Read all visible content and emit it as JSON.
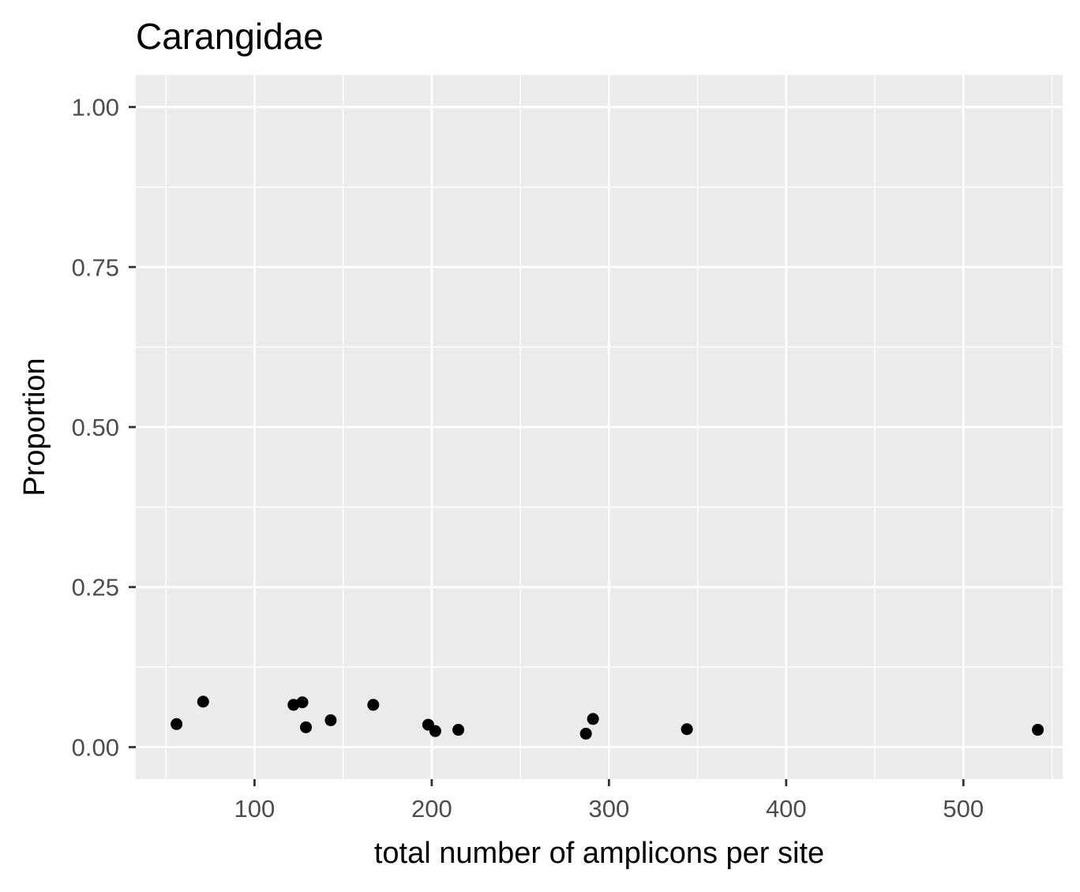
{
  "chart_data": {
    "type": "scatter",
    "title": "Carangidae",
    "xlabel": "total number of amplicons per site",
    "ylabel": "Proportion",
    "xlim": [
      33,
      556
    ],
    "ylim": [
      -0.05,
      1.05
    ],
    "x_ticks": [
      100,
      200,
      300,
      400,
      500
    ],
    "x_tick_labels": [
      "100",
      "200",
      "300",
      "400",
      "500"
    ],
    "x_minor_ticks": [
      50,
      150,
      250,
      350,
      450,
      550
    ],
    "y_ticks": [
      0,
      0.25,
      0.5,
      0.75,
      1.0
    ],
    "y_tick_labels": [
      "0.00",
      "0.25",
      "0.50",
      "0.75",
      "1.00"
    ],
    "y_minor_ticks": [
      0.125,
      0.375,
      0.625,
      0.875
    ],
    "grid": true,
    "legend": "none",
    "colors": {
      "panel_background": "#ebebeb",
      "grid": "#ffffff",
      "point": "#000000",
      "tick_label": "#4d4d4d",
      "text": "#000000"
    },
    "points": [
      {
        "x": 56,
        "y": 0.036
      },
      {
        "x": 71,
        "y": 0.071
      },
      {
        "x": 122,
        "y": 0.066
      },
      {
        "x": 127,
        "y": 0.07
      },
      {
        "x": 129,
        "y": 0.031
      },
      {
        "x": 143,
        "y": 0.042
      },
      {
        "x": 167,
        "y": 0.066
      },
      {
        "x": 198,
        "y": 0.035
      },
      {
        "x": 202,
        "y": 0.025
      },
      {
        "x": 215,
        "y": 0.027
      },
      {
        "x": 287,
        "y": 0.021
      },
      {
        "x": 291,
        "y": 0.044
      },
      {
        "x": 344,
        "y": 0.028
      },
      {
        "x": 542,
        "y": 0.027
      }
    ]
  }
}
